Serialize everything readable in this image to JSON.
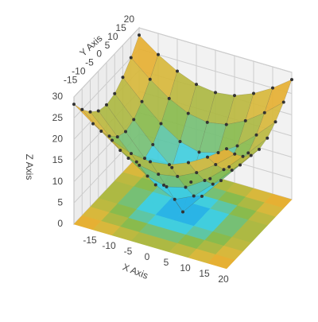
{
  "chart_data": {
    "type": "surface",
    "x_label": "X Axis",
    "y_label": "Y Axis",
    "z_label": "Z Axis",
    "x": [
      -20,
      -15,
      -10,
      -5,
      0,
      5,
      10,
      15,
      20
    ],
    "y": [
      -20,
      -15,
      -10,
      -5,
      0,
      5,
      10,
      15,
      20
    ],
    "z": [
      [
        28.3,
        25,
        22.4,
        20.6,
        20,
        20.6,
        22.4,
        25,
        28.3
      ],
      [
        25,
        21.2,
        18,
        15.8,
        15,
        15.8,
        18,
        21.2,
        25
      ],
      [
        22.4,
        18,
        14.1,
        11.2,
        10,
        11.2,
        14.1,
        18,
        22.4
      ],
      [
        20.6,
        15.8,
        11.2,
        7.1,
        5,
        7.1,
        11.2,
        15.8,
        20.6
      ],
      [
        20,
        15,
        10,
        5,
        0,
        5,
        10,
        15,
        20
      ],
      [
        20.6,
        15.8,
        11.2,
        7.1,
        5,
        7.1,
        11.2,
        15.8,
        20.6
      ],
      [
        22.4,
        18,
        14.1,
        11.2,
        10,
        11.2,
        14.1,
        18,
        22.4
      ],
      [
        25,
        21.2,
        18,
        15.8,
        15,
        15.8,
        18,
        21.2,
        25
      ],
      [
        28.3,
        25,
        22.4,
        20.6,
        20,
        20.6,
        22.4,
        25,
        28.3
      ]
    ],
    "xlim": [
      -20,
      20
    ],
    "ylim": [
      -20,
      20
    ],
    "zlim": [
      0,
      30
    ],
    "xticks": [
      -15,
      -10,
      -5,
      0,
      5,
      10,
      15,
      20
    ],
    "yticks": [
      -15,
      -10,
      -5,
      0,
      5,
      10,
      15,
      20
    ],
    "zticks": [
      0,
      5,
      10,
      15,
      20,
      25,
      30
    ],
    "colorscale": [
      "#1890d8",
      "#38d0f0",
      "#8cba48",
      "#e2b83a",
      "#f0a024"
    ],
    "marker_color": "#333333",
    "grid": true
  }
}
